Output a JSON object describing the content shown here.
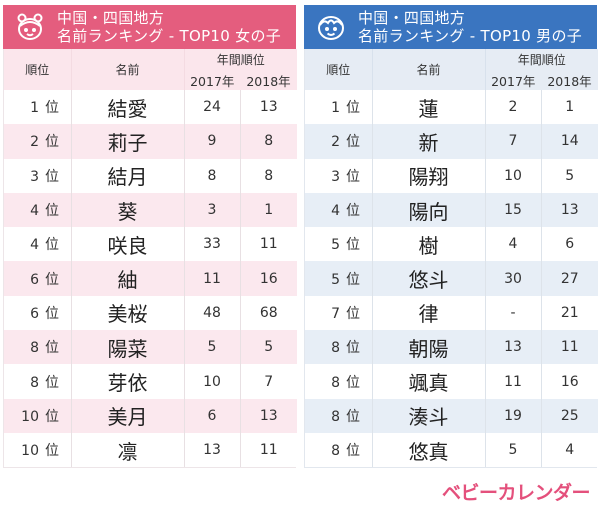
{
  "colors": {
    "girls_accent": "#e45d7e",
    "boys_accent": "#3a75c0",
    "logo": "#e4507c"
  },
  "girls": {
    "icon": "girl-face-icon",
    "title_line1": "中国・四国地方",
    "title_line2": "名前ランキング - TOP10 女の子",
    "headers": {
      "rank": "順位",
      "name": "名前",
      "annual_rank": "年間順位",
      "y2017": "2017年",
      "y2018": "2018年"
    },
    "rows": [
      {
        "rank": "1",
        "unit": "位",
        "name": "結愛",
        "y2017": "24",
        "y2018": "13"
      },
      {
        "rank": "2",
        "unit": "位",
        "name": "莉子",
        "y2017": "9",
        "y2018": "8"
      },
      {
        "rank": "3",
        "unit": "位",
        "name": "結月",
        "y2017": "8",
        "y2018": "8"
      },
      {
        "rank": "4",
        "unit": "位",
        "name": "葵",
        "y2017": "3",
        "y2018": "1"
      },
      {
        "rank": "4",
        "unit": "位",
        "name": "咲良",
        "y2017": "33",
        "y2018": "11"
      },
      {
        "rank": "6",
        "unit": "位",
        "name": "紬",
        "y2017": "11",
        "y2018": "16"
      },
      {
        "rank": "6",
        "unit": "位",
        "name": "美桜",
        "y2017": "48",
        "y2018": "68"
      },
      {
        "rank": "8",
        "unit": "位",
        "name": "陽菜",
        "y2017": "5",
        "y2018": "5"
      },
      {
        "rank": "8",
        "unit": "位",
        "name": "芽依",
        "y2017": "10",
        "y2018": "7"
      },
      {
        "rank": "10",
        "unit": "位",
        "name": "美月",
        "y2017": "6",
        "y2018": "13"
      },
      {
        "rank": "10",
        "unit": "位",
        "name": "凛",
        "y2017": "13",
        "y2018": "11"
      }
    ]
  },
  "boys": {
    "icon": "boy-face-icon",
    "title_line1": "中国・四国地方",
    "title_line2": "名前ランキング - TOP10 男の子",
    "headers": {
      "rank": "順位",
      "name": "名前",
      "annual_rank": "年間順位",
      "y2017": "2017年",
      "y2018": "2018年"
    },
    "rows": [
      {
        "rank": "1",
        "unit": "位",
        "name": "蓮",
        "y2017": "2",
        "y2018": "1"
      },
      {
        "rank": "2",
        "unit": "位",
        "name": "新",
        "y2017": "7",
        "y2018": "14"
      },
      {
        "rank": "3",
        "unit": "位",
        "name": "陽翔",
        "y2017": "10",
        "y2018": "5"
      },
      {
        "rank": "4",
        "unit": "位",
        "name": "陽向",
        "y2017": "15",
        "y2018": "13"
      },
      {
        "rank": "5",
        "unit": "位",
        "name": "樹",
        "y2017": "4",
        "y2018": "6"
      },
      {
        "rank": "5",
        "unit": "位",
        "name": "悠斗",
        "y2017": "30",
        "y2018": "27"
      },
      {
        "rank": "7",
        "unit": "位",
        "name": "律",
        "y2017": "-",
        "y2018": "21"
      },
      {
        "rank": "8",
        "unit": "位",
        "name": "朝陽",
        "y2017": "13",
        "y2018": "11"
      },
      {
        "rank": "8",
        "unit": "位",
        "name": "颯真",
        "y2017": "11",
        "y2018": "16"
      },
      {
        "rank": "8",
        "unit": "位",
        "name": "湊斗",
        "y2017": "19",
        "y2018": "25"
      },
      {
        "rank": "8",
        "unit": "位",
        "name": "悠真",
        "y2017": "5",
        "y2018": "4"
      }
    ]
  },
  "logo": {
    "text": "ベビーカレンダー"
  }
}
